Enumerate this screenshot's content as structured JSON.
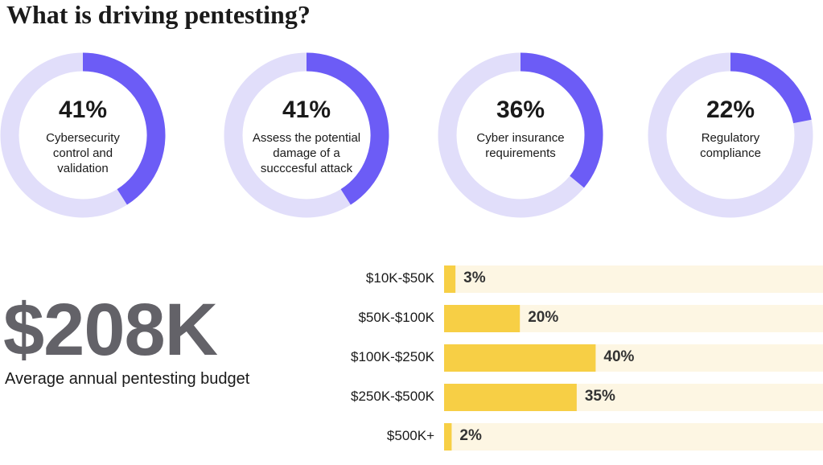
{
  "title": "What is driving pentesting?",
  "chart_data": [
    {
      "type": "donut",
      "title": "Cybersecurity control and validation",
      "values": [
        41
      ],
      "value_labels": [
        "41%"
      ],
      "color": "#6c5cf6",
      "track_color": "#e1defa"
    },
    {
      "type": "donut",
      "title": "Assess the potential damage of a succcesful attack",
      "values": [
        41
      ],
      "value_labels": [
        "41%"
      ],
      "color": "#6c5cf6",
      "track_color": "#e1defa"
    },
    {
      "type": "donut",
      "title": "Cyber insurance requirements",
      "values": [
        36
      ],
      "value_labels": [
        "36%"
      ],
      "color": "#6c5cf6",
      "track_color": "#e1defa"
    },
    {
      "type": "donut",
      "title": "Regulatory compliance",
      "values": [
        22
      ],
      "value_labels": [
        "22%"
      ],
      "color": "#6c5cf6",
      "track_color": "#e1defa"
    },
    {
      "type": "bar",
      "orientation": "horizontal",
      "categories": [
        "$10K-$50K",
        "$50K-$100K",
        "$100K-$250K",
        "$250K-$500K",
        "$500K+"
      ],
      "values": [
        3,
        20,
        40,
        35,
        2
      ],
      "value_labels": [
        "3%",
        "20%",
        "40%",
        "35%",
        "2%"
      ],
      "color": "#f7cf45",
      "track_color": "#fdf6e3",
      "xlim": [
        0,
        100
      ]
    }
  ],
  "stat": {
    "value": "$208K",
    "label": "Average annual pentesting budget"
  }
}
